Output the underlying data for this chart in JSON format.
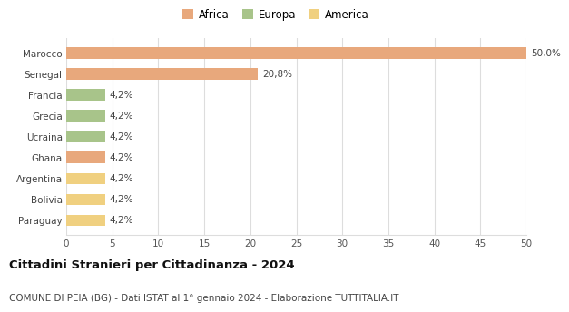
{
  "categories": [
    "Marocco",
    "Senegal",
    "Francia",
    "Grecia",
    "Ucraina",
    "Ghana",
    "Argentina",
    "Bolivia",
    "Paraguay"
  ],
  "values": [
    50.0,
    20.8,
    4.2,
    4.2,
    4.2,
    4.2,
    4.2,
    4.2,
    4.2
  ],
  "labels": [
    "50,0%",
    "20,8%",
    "4,2%",
    "4,2%",
    "4,2%",
    "4,2%",
    "4,2%",
    "4,2%",
    "4,2%"
  ],
  "colors": [
    "#e8a87c",
    "#e8a87c",
    "#a8c48a",
    "#a8c48a",
    "#a8c48a",
    "#e8a87c",
    "#f0d080",
    "#f0d080",
    "#f0d080"
  ],
  "legend": [
    {
      "label": "Africa",
      "color": "#e8a87c"
    },
    {
      "label": "Europa",
      "color": "#a8c48a"
    },
    {
      "label": "America",
      "color": "#f0d080"
    }
  ],
  "xlim": [
    0,
    50
  ],
  "xticks": [
    0,
    5,
    10,
    15,
    20,
    25,
    30,
    35,
    40,
    45,
    50
  ],
  "title": "Cittadini Stranieri per Cittadinanza - 2024",
  "subtitle": "COMUNE DI PEIA (BG) - Dati ISTAT al 1° gennaio 2024 - Elaborazione TUTTITALIA.IT",
  "title_fontsize": 9.5,
  "subtitle_fontsize": 7.5,
  "label_fontsize": 7.5,
  "tick_fontsize": 7.5,
  "legend_fontsize": 8.5,
  "background_color": "#ffffff",
  "grid_color": "#dddddd",
  "bar_height": 0.55
}
